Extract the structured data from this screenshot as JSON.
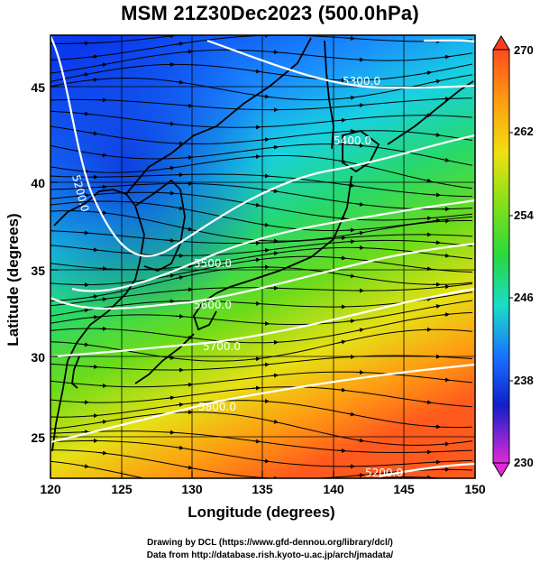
{
  "title": "MSM 21Z30Dec2023 (500.0hPa)",
  "xlabel": "Longitude (degrees)",
  "ylabel": "Latitude  (degrees)",
  "x_ticks": [
    "120",
    "125",
    "130",
    "135",
    "140",
    "145",
    "150"
  ],
  "y_ticks": [
    "25",
    "30",
    "35",
    "40",
    "45"
  ],
  "colorbar_ticks": [
    "270",
    "262",
    "254",
    "246",
    "238",
    "230"
  ],
  "contour_labels": [
    "5300.0",
    "5400.0",
    "5500.0",
    "5600.0",
    "5700.0",
    "5800.0",
    "5200.0",
    "5200.0"
  ],
  "credits": {
    "line1": "Drawing by DCL (https://www.gfd-dennou.org/library/dcl/)",
    "line2": "Data from http://database.rish.kyoto-u.ac.jp/arch/jmadata/"
  },
  "colors": {
    "warm": "#ff5a1e",
    "mid": "#2ee04a",
    "cold": "#0a3cf0",
    "contour": "#ffffff",
    "coast": "#000000"
  },
  "map": {
    "lon_range": [
      120,
      150
    ],
    "lat_range": [
      22.4,
      47.6
    ],
    "field": "temperature shading (K) with geopotential height contours (m) and wind streamlines",
    "colorbar_range": [
      230,
      270
    ]
  }
}
